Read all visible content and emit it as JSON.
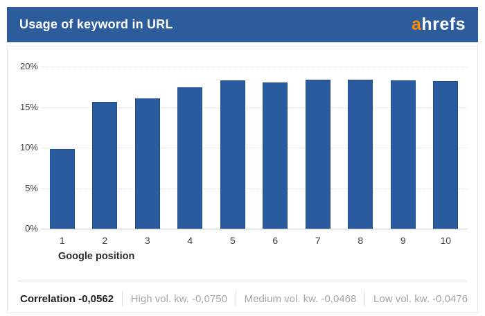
{
  "header": {
    "title": "Usage of keyword in URL",
    "logo": {
      "prefix": "a",
      "rest": "hrefs"
    }
  },
  "chart_data": {
    "type": "bar",
    "title": "Usage of keyword in URL",
    "categories": [
      "1",
      "2",
      "3",
      "4",
      "5",
      "6",
      "7",
      "8",
      "9",
      "10"
    ],
    "values": [
      9.8,
      15.6,
      16.1,
      17.4,
      18.3,
      18.0,
      18.4,
      18.4,
      18.3,
      18.2
    ],
    "xlabel": "Google position",
    "ylabel": "",
    "ylim": [
      0,
      20
    ],
    "yticks": [
      "0%",
      "5%",
      "10%",
      "15%",
      "20%"
    ],
    "grid": true,
    "legend": "none",
    "bar_color": "#2b5b9f",
    "bar_border_color": "#1d4e94"
  },
  "footer": {
    "correlation_label": "Correlation -0,0562",
    "segments": [
      {
        "label": "High vol. kw. -0,0750"
      },
      {
        "label": "Medium vol. kw. -0,0468"
      },
      {
        "label": "Low vol. kw. -0,0476"
      }
    ]
  },
  "colors": {
    "header_bg": "#2d5c9d",
    "accent_orange": "#ff8800",
    "bar_blue": "#2b5b9f"
  }
}
